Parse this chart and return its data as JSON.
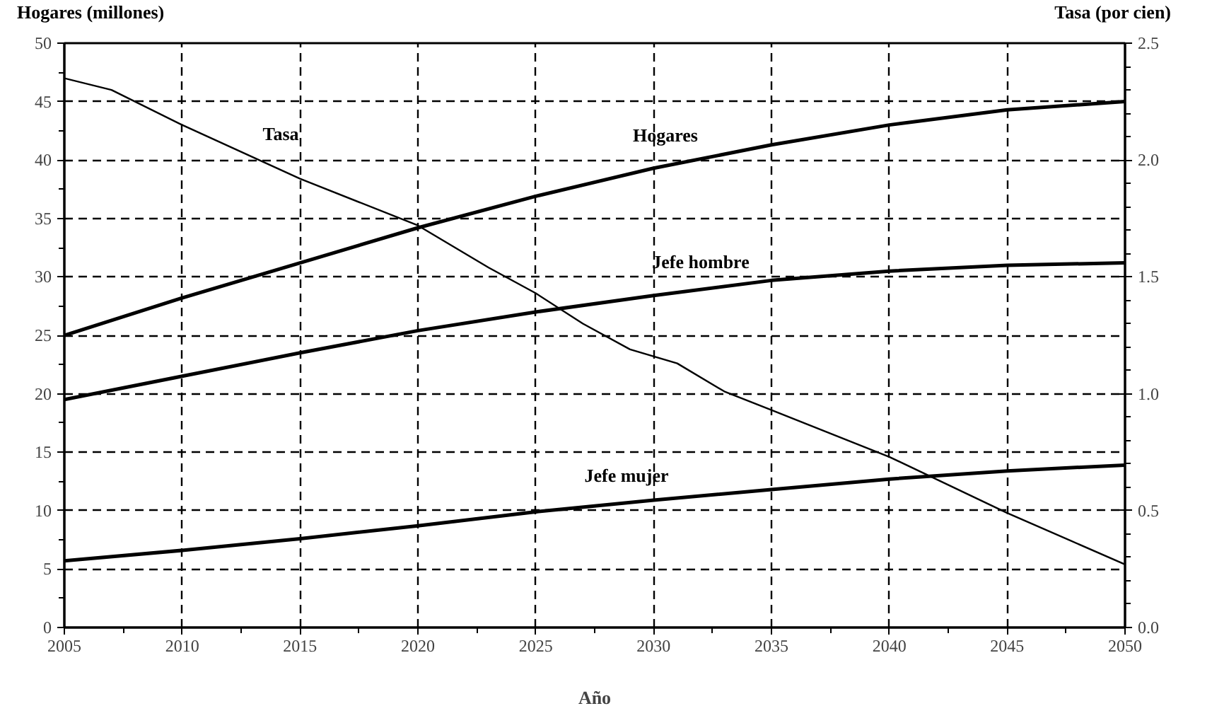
{
  "chart_data": {
    "type": "line",
    "xlabel": "Año",
    "ylabel": "Hogares (millones)",
    "y2label": "Tasa (por cien)",
    "x": [
      2005,
      2010,
      2015,
      2020,
      2025,
      2030,
      2035,
      2040,
      2045,
      2050
    ],
    "series": [
      {
        "name": "Hogares",
        "color": "#000000",
        "values": [
          25,
          28.2,
          31.2,
          34.2,
          36.9,
          39.3,
          41.3,
          43,
          44.3,
          45
        ]
      },
      {
        "name": "Jefe hombre",
        "color": "#000000",
        "values": [
          19.5,
          21.5,
          23.5,
          25.4,
          27,
          28.4,
          29.7,
          30.5,
          31,
          31.2
        ]
      },
      {
        "name": "Jefe mujer",
        "color": "#000000",
        "values": [
          5.7,
          6.6,
          7.6,
          8.7,
          9.9,
          10.9,
          11.8,
          12.7,
          13.4,
          13.9
        ]
      },
      {
        "name": "Tasa",
        "color": "#000000",
        "axis": "y2",
        "x": [
          2005,
          2007,
          2010,
          2015,
          2020,
          2023,
          2025,
          2027,
          2029,
          2031,
          2033,
          2035,
          2040,
          2045,
          2050
        ],
        "values": [
          2.35,
          2.3,
          2.15,
          1.92,
          1.72,
          1.54,
          1.43,
          1.3,
          1.19,
          1.13,
          1.01,
          0.93,
          0.73,
          0.49,
          0.27
        ]
      }
    ],
    "xlim": [
      2005,
      2050
    ],
    "xticks": [
      2005,
      2010,
      2015,
      2020,
      2025,
      2030,
      2035,
      2040,
      2045,
      2050
    ],
    "ylim": [
      0,
      50
    ],
    "yticks": [
      0,
      5,
      10,
      15,
      20,
      25,
      30,
      35,
      40,
      45,
      50
    ],
    "y2lim": [
      0,
      2.5
    ],
    "y2ticks": [
      {
        "value": 0,
        "label": "0.0"
      },
      {
        "value": 0.5,
        "label": "0.5"
      },
      {
        "value": 1,
        "label": "1.0"
      },
      {
        "value": 1.5,
        "label": "1.5"
      },
      {
        "value": 2,
        "label": "2.0"
      },
      {
        "value": 2.5,
        "label": "2.5"
      }
    ],
    "grid": true,
    "marker": "none",
    "line_style": "solid"
  }
}
